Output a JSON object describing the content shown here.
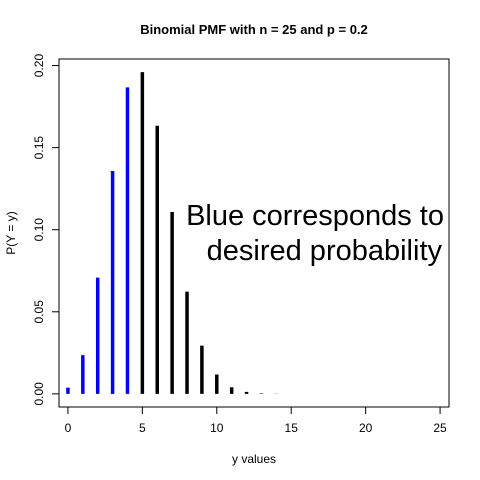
{
  "chart_data": {
    "type": "bar",
    "title": "Binomial PMF with n = 25 and p = 0.2",
    "xlabel": "y values",
    "ylabel": "P(Y = y)",
    "xlim": [
      -0.6,
      25.6
    ],
    "ylim": [
      -0.008,
      0.204
    ],
    "x_ticks": [
      0,
      5,
      10,
      15,
      20,
      25
    ],
    "y_ticks": [
      "0.00",
      "0.05",
      "0.10",
      "0.15",
      "0.20"
    ],
    "x": [
      0,
      1,
      2,
      3,
      4,
      5,
      6,
      7,
      8,
      9,
      10,
      11,
      12,
      13,
      14,
      15,
      16,
      17,
      18,
      19,
      20,
      21,
      22,
      23,
      24,
      25
    ],
    "values": [
      0.0038,
      0.0236,
      0.0708,
      0.1358,
      0.1867,
      0.196,
      0.1633,
      0.1108,
      0.0623,
      0.0294,
      0.0118,
      0.004,
      0.0012,
      0.0003,
      0.0001,
      0,
      0,
      0,
      0,
      0,
      0,
      0,
      0,
      0,
      0,
      0
    ],
    "highlight_max_y": 4,
    "colors": {
      "highlight": "#0000ff",
      "default": "#000000"
    },
    "annotation_lines": [
      "Blue corresponds to",
      "desired probability"
    ]
  }
}
